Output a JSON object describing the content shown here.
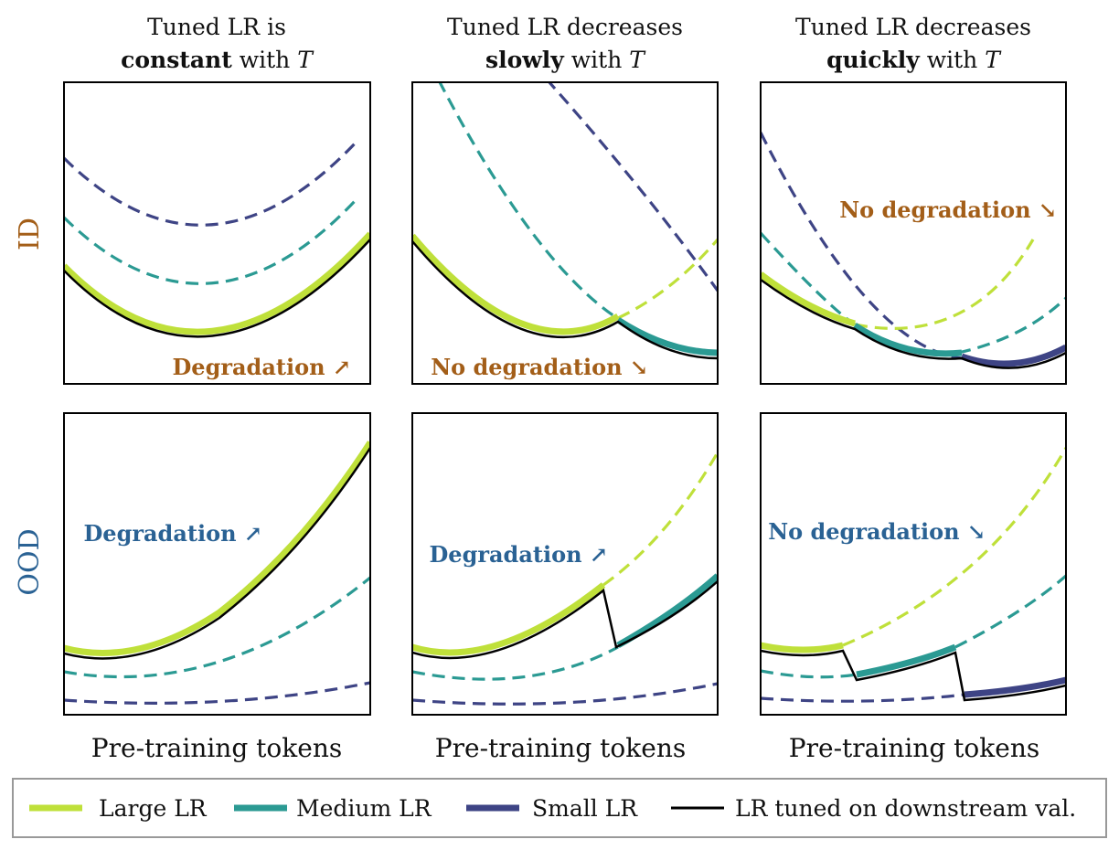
{
  "colors": {
    "large": "#bfe03a",
    "medium": "#2b9a93",
    "small": "#3e4485",
    "tuned": "#000000",
    "id_label": "#a35e18",
    "ood_label": "#2a6294"
  },
  "columns": [
    {
      "line1": "Tuned LR is",
      "bold": "constant",
      "rest": " with ",
      "italic": "T"
    },
    {
      "line1": "Tuned LR decreases",
      "bold": "slowly",
      "rest": " with ",
      "italic": "T"
    },
    {
      "line1": "Tuned LR decreases",
      "bold": "quickly",
      "rest": " with ",
      "italic": "T"
    }
  ],
  "rows": [
    "ID",
    "OOD"
  ],
  "xlabel": "Pre-training tokens",
  "annotations": {
    "id": [
      "Degradation ↗",
      "No degradation ↘",
      "No degradation ↘"
    ],
    "ood": [
      "Degradation ↗",
      "Degradation ↗",
      "No degradation ↘"
    ]
  },
  "legend": [
    {
      "label": "Large LR",
      "color_key": "large"
    },
    {
      "label": "Medium LR",
      "color_key": "medium"
    },
    {
      "label": "Small LR",
      "color_key": "small"
    },
    {
      "label": "LR tuned on downstream val.",
      "color_key": "tuned"
    }
  ]
}
